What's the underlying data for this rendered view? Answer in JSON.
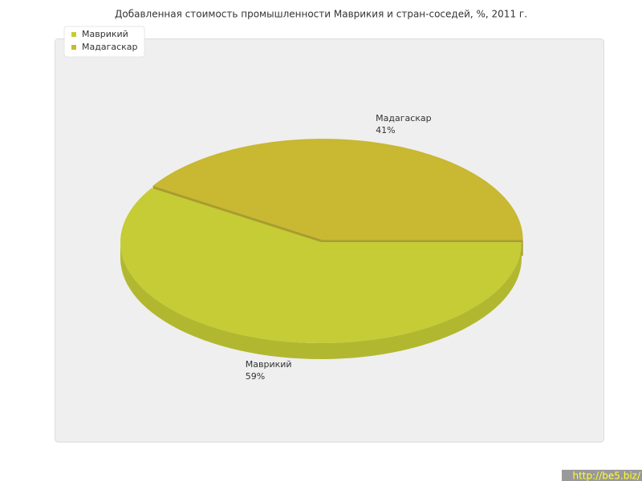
{
  "chart_data": {
    "type": "pie3d",
    "title": "Добавленная стоимость промышленности Маврикия и стран-соседей, %, 2011 г.",
    "categories": [
      "Маврикий",
      "Мадагаскар"
    ],
    "values": [
      59,
      41
    ],
    "value_labels": [
      "59%",
      "41%"
    ],
    "colors": [
      "#c5cc35",
      "#c8b832"
    ],
    "legend": "top-left"
  },
  "watermark": "http://be5.biz/"
}
